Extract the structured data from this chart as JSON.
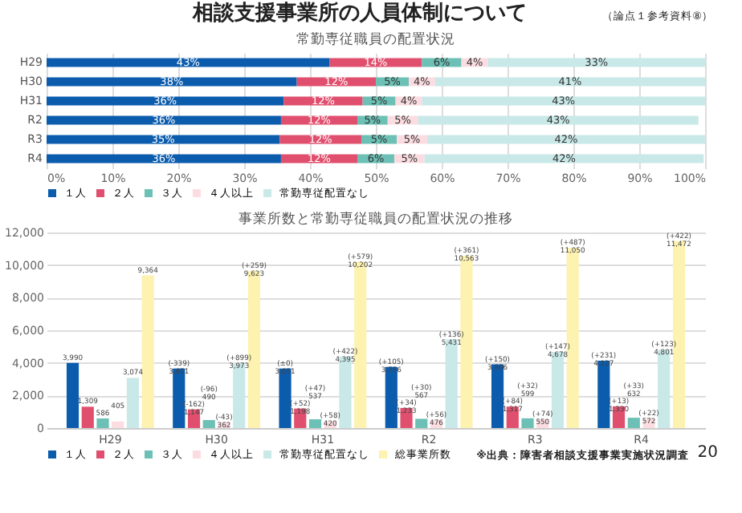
{
  "chart_data": [
    {
      "type": "bar",
      "orientation": "horizontal",
      "stacked": true,
      "title": "常勤専従職員の配置状況",
      "annotations": [
        "相談支援事業所の人員体制について",
        "（論点１参考資料⑧）"
      ],
      "categories": [
        "H29",
        "H30",
        "H31",
        "R2",
        "R3",
        "R4"
      ],
      "series": [
        {
          "name": "１人",
          "color": "#0b5cad",
          "values": [
            43,
            38,
            36,
            35.6,
            35.4,
            35.6
          ],
          "value_labels": [
            "43%",
            "38%",
            "36%",
            "36%",
            "35%",
            "36%"
          ]
        },
        {
          "name": "２人",
          "color": "#e0506e",
          "values": [
            14,
            12,
            12,
            11.6,
            12.4,
            11.6
          ],
          "value_labels": [
            "14%",
            "12%",
            "12%",
            "12%",
            "12%",
            "12%"
          ]
        },
        {
          "name": "３人",
          "color": "#6cc0b5",
          "values": [
            6,
            5,
            5,
            4.6,
            5.4,
            5.6
          ],
          "value_labels": [
            "6%",
            "5%",
            "5%",
            "5%",
            "5%",
            "6%"
          ]
        },
        {
          "name": "４人以上",
          "color": "#fbdde1",
          "values": [
            4,
            4,
            4,
            4.6,
            4.6,
            4.6
          ],
          "value_labels": [
            "4%",
            "4%",
            "4%",
            "5%",
            "5%",
            "5%"
          ]
        },
        {
          "name": "常勤専従配置なし",
          "color": "#c9e8e8",
          "values": [
            33,
            41,
            43,
            42.6,
            42.2,
            42.4
          ],
          "value_labels": [
            "33%",
            "41%",
            "43%",
            "43%",
            "42%",
            "42%"
          ]
        }
      ],
      "xlim": [
        0,
        100
      ],
      "xticks": [
        {
          "value": 0,
          "label": "0%"
        },
        {
          "value": 10,
          "label": "10%"
        },
        {
          "value": 20,
          "label": "20%"
        },
        {
          "value": 30,
          "label": "30%"
        },
        {
          "value": 40,
          "label": "40%"
        },
        {
          "value": 50,
          "label": "50%"
        },
        {
          "value": 60,
          "label": "60%"
        },
        {
          "value": 70,
          "label": "70%"
        },
        {
          "value": 80,
          "label": "80%"
        },
        {
          "value": 90,
          "label": "90%"
        },
        {
          "value": 100,
          "label": "100%"
        }
      ],
      "grid": "x",
      "legend": "bottom"
    },
    {
      "type": "bar",
      "title": "事業所数と常勤専従職員の配置状況の推移",
      "annotations": [
        "※出典：障害者相談支援事業実施状況調査",
        "20"
      ],
      "categories": [
        "H29",
        "H30",
        "H31",
        "R2",
        "R3",
        "R4"
      ],
      "series": [
        {
          "name": "１人",
          "color": "#0b5cad",
          "values": [
            3990,
            3651,
            3651,
            3756,
            3906,
            4137
          ],
          "value_labels": [
            "3,990",
            "(-339)\n3,651",
            "(±0)\n3,651",
            "(+105)\n3,756",
            "(+150)\n3,906",
            "(+231)\n4,137"
          ]
        },
        {
          "name": "２人",
          "color": "#e0506e",
          "values": [
            1309,
            1147,
            1198,
            1233,
            1317,
            1330
          ],
          "value_labels": [
            "1,309",
            "(-162)\n1,147",
            "(+52)\n1,198",
            "(+34)\n1,233",
            "(+84)\n1,317",
            "(+13)\n1,330"
          ]
        },
        {
          "name": "３人",
          "color": "#6cc0b5",
          "values": [
            586,
            490,
            537,
            567,
            599,
            632
          ],
          "value_labels": [
            "586",
            "(-96)\n490",
            "(+47)\n537",
            "(+30)\n567",
            "(+32)\n599",
            "(+33)\n632"
          ]
        },
        {
          "name": "４人以上",
          "color": "#fbdde1",
          "values": [
            405,
            362,
            420,
            476,
            550,
            572
          ],
          "value_labels": [
            "405",
            "(-43)\n362",
            "(+58)\n420",
            "(+56)\n476",
            "(+74)\n550",
            "(+22)\n572"
          ]
        },
        {
          "name": "常勤専従配置なし",
          "color": "#c9e8e8",
          "values": [
            3074,
            3973,
            4395,
            5431,
            4678,
            4801
          ],
          "value_labels": [
            "3,074",
            "(+899)\n3,973",
            "(+422)\n4,395",
            "(+136)\n5,431",
            "(+147)\n4,678",
            "(+123)\n4,801"
          ]
        },
        {
          "name": "総事業所数",
          "color": "#fdf2b0",
          "values": [
            9364,
            9623,
            10202,
            10563,
            11050,
            11472
          ],
          "value_labels": [
            "9,364",
            "(+259)\n9,623",
            "(+579)\n10,202",
            "(+361)\n10,563",
            "(+487)\n11,050",
            "(+422)\n11,472"
          ]
        }
      ],
      "ylim": [
        0,
        12000
      ],
      "yticks": [
        {
          "value": 0,
          "label": "0"
        },
        {
          "value": 2000,
          "label": "2,000"
        },
        {
          "value": 4000,
          "label": "4,000"
        },
        {
          "value": 6000,
          "label": "6,000"
        },
        {
          "value": 8000,
          "label": "8,000"
        },
        {
          "value": 10000,
          "label": "10,000"
        },
        {
          "value": 12000,
          "label": "12,000"
        }
      ],
      "grid": "y",
      "legend": "bottom"
    }
  ]
}
